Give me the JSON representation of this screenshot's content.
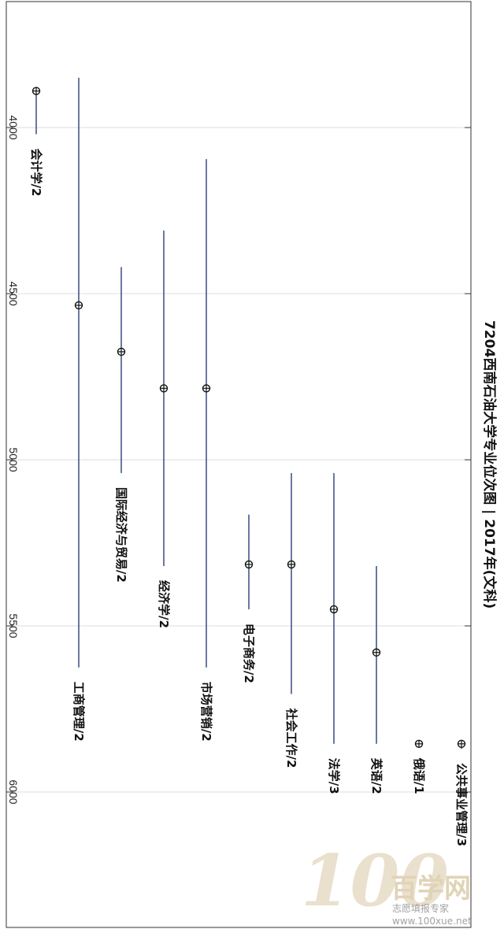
{
  "chart_data": {
    "type": "range",
    "title": "7204西南石油大学专业位次图 | 2017年(文科)",
    "ylim": [
      3650,
      6350
    ],
    "ticks": [
      4000,
      4500,
      5000,
      5500,
      6000
    ],
    "tick_labels": [
      "4000",
      "4500",
      "5000",
      "5500",
      "6000"
    ],
    "grid": true,
    "series": [
      {
        "label": "会计学/2",
        "low": 3890,
        "high": 4020,
        "mark": 3890
      },
      {
        "label": "工商管理/2",
        "low": 3850,
        "high": 5625,
        "mark": 4535
      },
      {
        "label": "国际经济与贸易/2",
        "low": 4420,
        "high": 5040,
        "mark": 4675
      },
      {
        "label": "经济学/2",
        "low": 4310,
        "high": 5320,
        "mark": 4785
      },
      {
        "label": "市场营销/2",
        "low": 4095,
        "high": 5625,
        "mark": 4785
      },
      {
        "label": "电子商务/2",
        "low": 5165,
        "high": 5450,
        "mark": 5315
      },
      {
        "label": "社会工作/2",
        "low": 5040,
        "high": 5705,
        "mark": 5315
      },
      {
        "label": "法学/3",
        "low": 5040,
        "high": 5855,
        "mark": 5450
      },
      {
        "label": "英语/2",
        "low": 5320,
        "high": 5855,
        "mark": 5580
      },
      {
        "label": "俄语/1",
        "low": 5855,
        "high": 5855,
        "mark": 5855
      },
      {
        "label": "公共事业管理/3",
        "low": 5855,
        "high": 5870,
        "mark": 5855
      }
    ]
  },
  "colors": {
    "range_line": "#2b3f7a",
    "marker": "#111111",
    "grid": "#dddddd",
    "axis": "#333333"
  },
  "watermark": {
    "big": "100",
    "cn": "百学网",
    "line1": "志愿填报专家",
    "line2": "www.100xue.net"
  }
}
